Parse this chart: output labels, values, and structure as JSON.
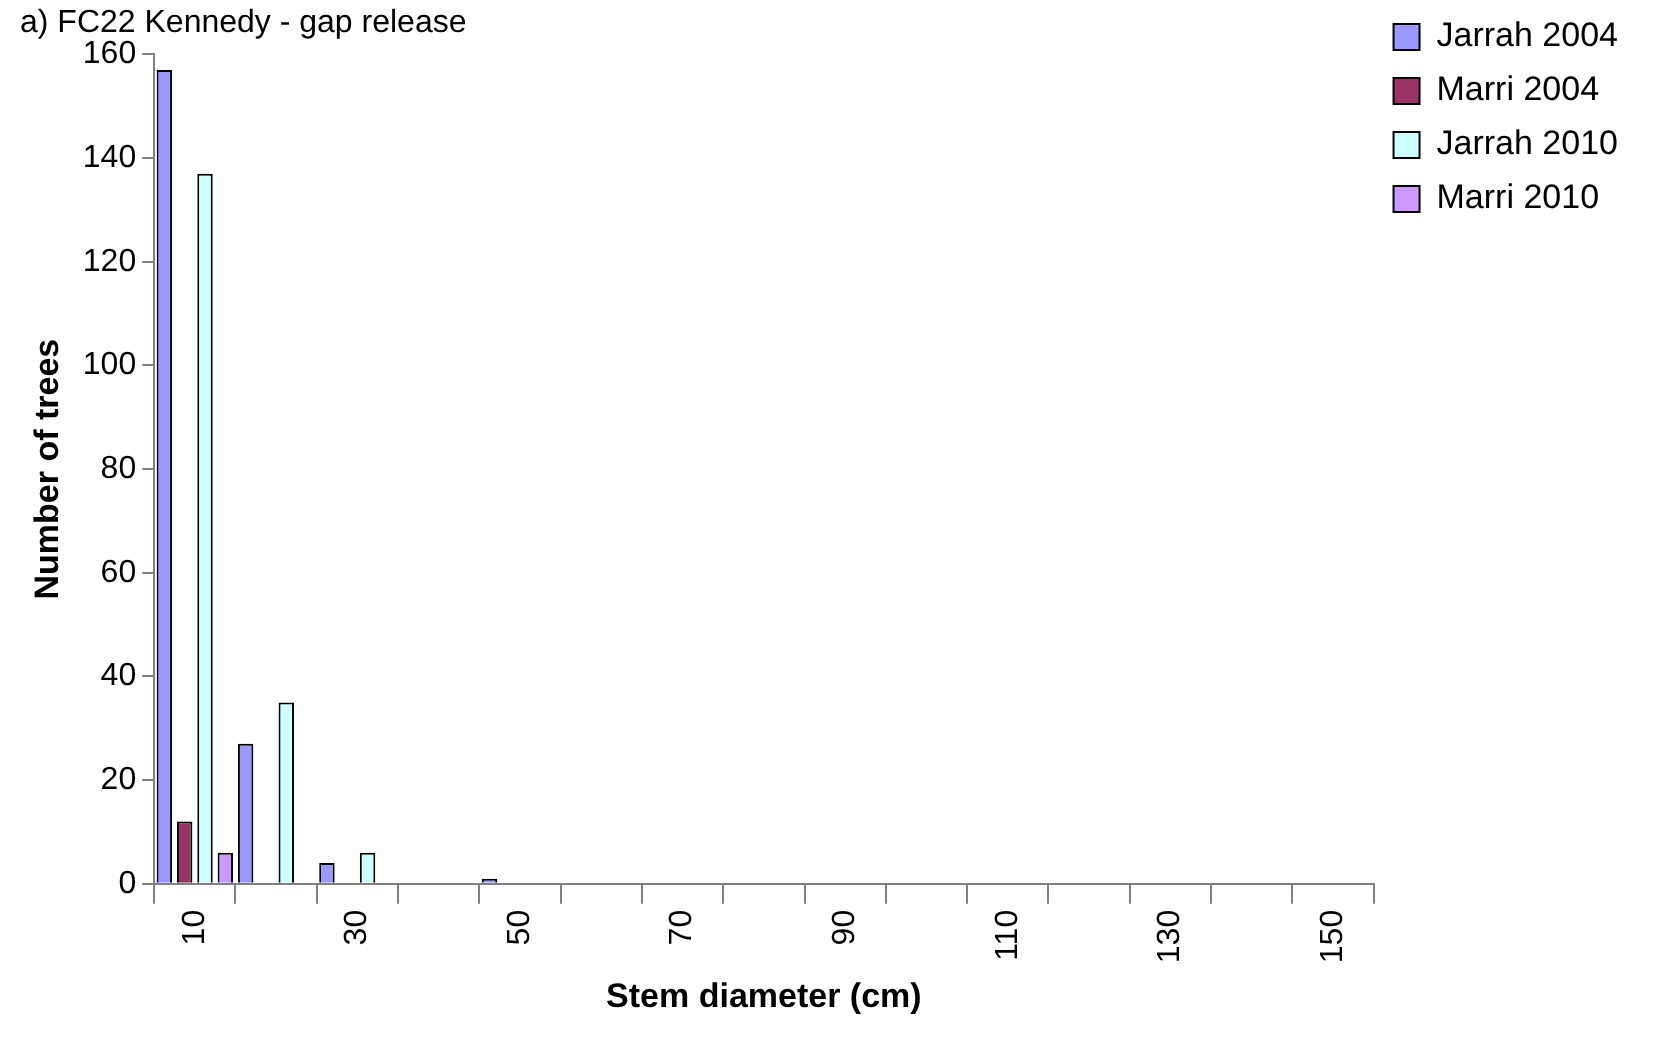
{
  "chart_data": {
    "type": "bar",
    "title": "a) FC22 Kennedy - gap release",
    "xlabel": "Stem diameter (cm)",
    "ylabel": "Number of trees",
    "categories": [
      "10",
      null,
      "30",
      null,
      "50",
      null,
      "70",
      null,
      "90",
      null,
      "110",
      null,
      "130",
      null,
      "150"
    ],
    "series": [
      {
        "name": "Jarrah 2004",
        "color": "#9999ff",
        "values": [
          157,
          27,
          4,
          0,
          1,
          0,
          0,
          0,
          0,
          0,
          0,
          0,
          0,
          0,
          0
        ]
      },
      {
        "name": "Marri 2004",
        "color": "#993366",
        "values": [
          12,
          0,
          0,
          0,
          0,
          0,
          0,
          0,
          0,
          0,
          0,
          0,
          0,
          0,
          0
        ]
      },
      {
        "name": "Jarrah 2010",
        "color": "#ccffff",
        "values": [
          137,
          35,
          6,
          0,
          0,
          0,
          0,
          0,
          0,
          0,
          0,
          0,
          0,
          0,
          0
        ]
      },
      {
        "name": "Marri 2010",
        "color": "#cc99ff",
        "values": [
          6,
          0,
          0,
          0,
          0,
          0,
          0,
          0,
          0,
          0,
          0,
          0,
          0,
          0,
          0
        ]
      }
    ],
    "ylim": [
      0,
      160
    ],
    "yticks": [
      0,
      20,
      40,
      60,
      80,
      100,
      120,
      140,
      160
    ],
    "grid": false,
    "legend": "top right"
  }
}
